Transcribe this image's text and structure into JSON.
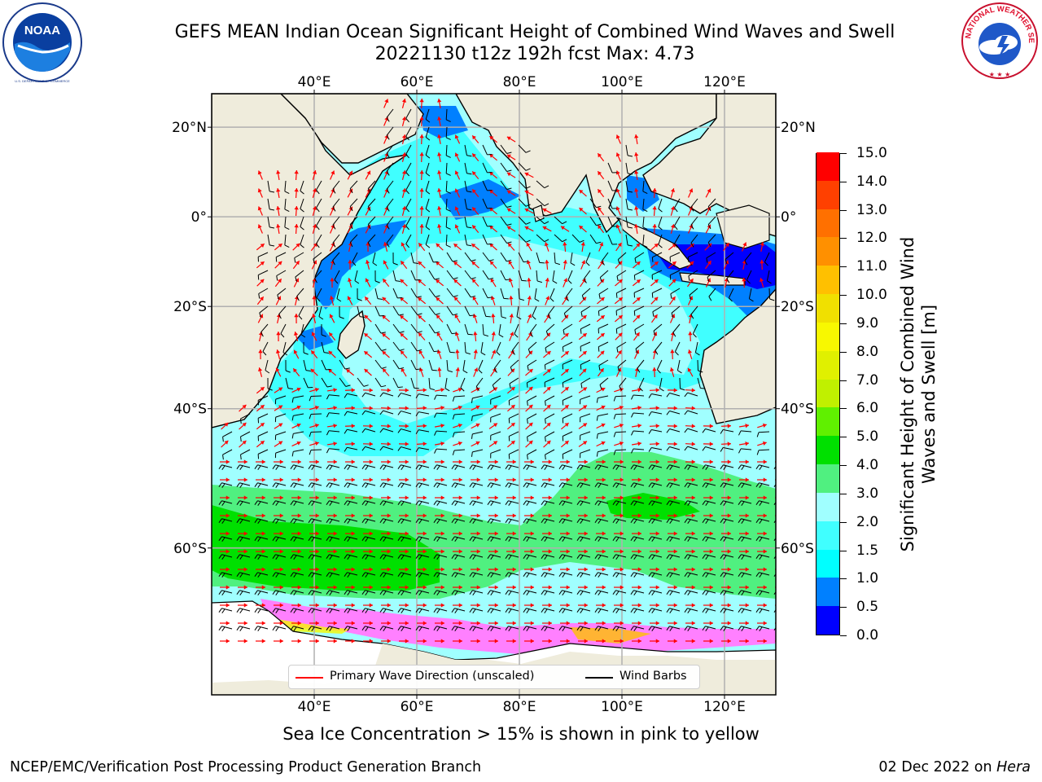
{
  "title": {
    "line1": "GEFS MEAN Indian Ocean Significant Height of Combined Wind Waves and Swell",
    "line2": "20221130 t12z 192h fcst   Max: 4.73"
  },
  "logos": {
    "noaa": {
      "name": "noaa-logo",
      "text": "NOAA",
      "ring_text": "NATIONAL OCEANIC AND ATMOSPHERIC ADMINISTRATION · U.S. DEPARTMENT OF COMMERCE"
    },
    "nws": {
      "name": "nws-logo",
      "ring_text": "NATIONAL WEATHER SERVICE"
    }
  },
  "map": {
    "lon_range": [
      20,
      130
    ],
    "lat_range": [
      -73,
      27
    ],
    "lon_ticks": [
      "40°E",
      "60°E",
      "80°E",
      "100°E",
      "120°E"
    ],
    "lon_tick_values": [
      40,
      60,
      80,
      100,
      120
    ],
    "lat_ticks": [
      "20°N",
      "0°",
      "20°S",
      "40°S",
      "60°S"
    ],
    "lat_tick_values": [
      20,
      0,
      -20,
      -40,
      -60
    ],
    "grid": true,
    "land_color": "#efecdc",
    "arrow_color": "#ff0000",
    "barb_color": "#000000"
  },
  "legend": {
    "placement": "bottom-center",
    "items": [
      {
        "label": "Primary Wave Direction (unscaled)",
        "color": "#ff0000"
      },
      {
        "label": "Wind Barbs",
        "color": "#000000"
      }
    ]
  },
  "colorbar": {
    "title": "Significant Height of Combined Wind Waves and Swell [m]",
    "ticks": [
      "0.0",
      "0.5",
      "1.0",
      "1.5",
      "2.0",
      "3.0",
      "4.0",
      "5.0",
      "6.0",
      "7.0",
      "8.0",
      "9.0",
      "10.0",
      "11.0",
      "12.0",
      "13.0",
      "14.0",
      "15.0"
    ],
    "colors": [
      "#0000ff",
      "#0080ff",
      "#00ffff",
      "#40ffff",
      "#a0ffff",
      "#50f080",
      "#00e000",
      "#60f000",
      "#c0f000",
      "#e0f000",
      "#f8f800",
      "#f0e000",
      "#ffc000",
      "#ff9000",
      "#ff7000",
      "#ff4000",
      "#ff0000"
    ]
  },
  "note": "Sea Ice Concentration > 15% is shown in pink to yellow",
  "footer": {
    "left": "NCEP/EMC/Verification Post Processing Product Generation Branch",
    "date": "02 Dec 2022 on ",
    "machine": "Hera"
  }
}
